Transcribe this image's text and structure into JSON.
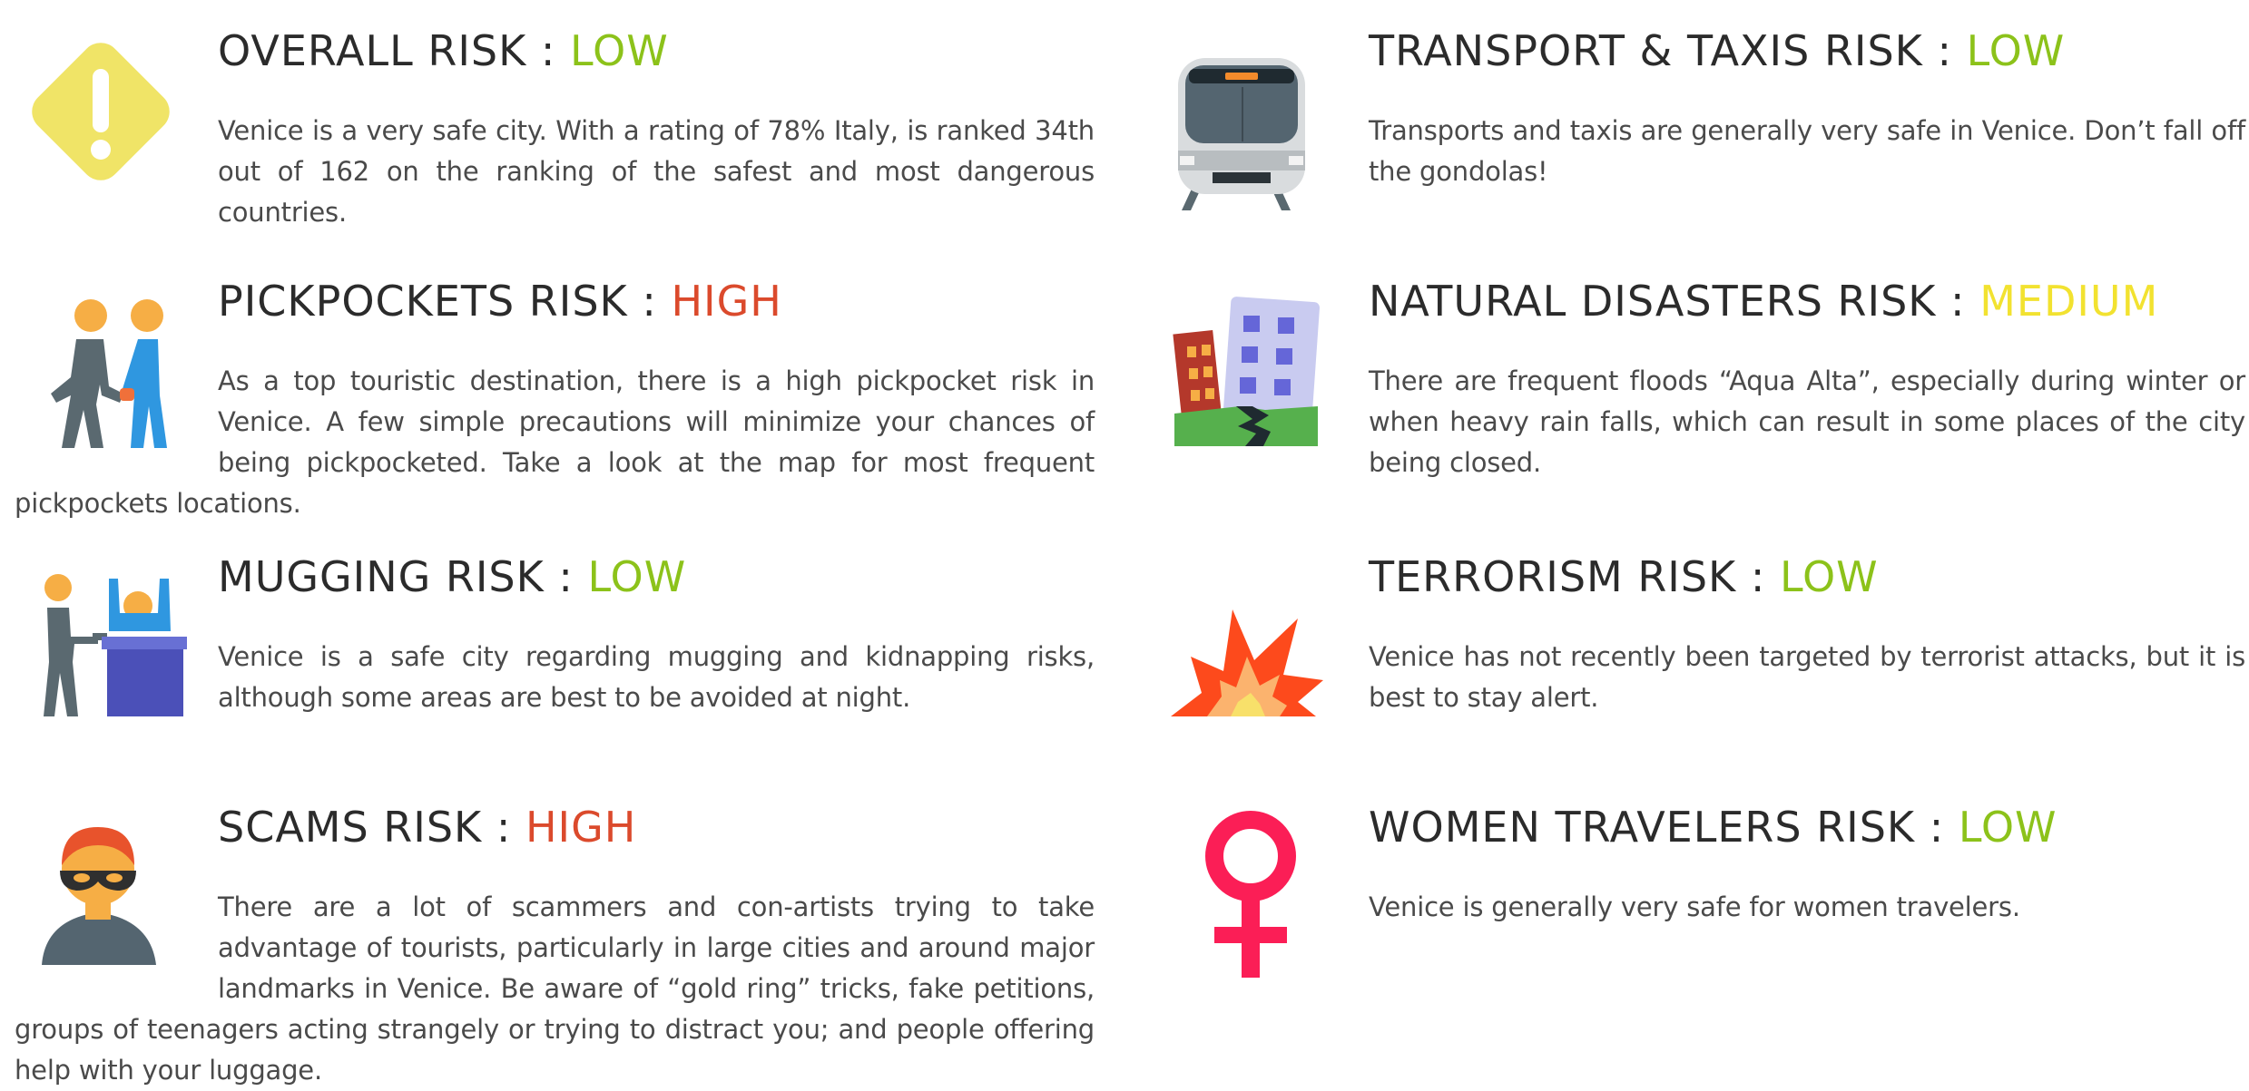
{
  "risks": [
    {
      "label": "OVERALL RISK",
      "separator": " : ",
      "level": "LOW",
      "description": "Venice is a very safe city. With a rating of 78% Italy,  is ranked 34th out of 162 on the ranking of the safest and most dangerous countries.",
      "icon": "warning-diamond-icon"
    },
    {
      "label": "PICKPOCKETS RISK",
      "separator": " : ",
      "level": "HIGH",
      "description": "As a top touristic destination, there is a high pickpocket risk in Venice. A few simple precautions will minimize your chances of being pickpocketed. Take a look at the map for most frequent pickpockets locations.",
      "icon": "pickpocket-icon"
    },
    {
      "label": "MUGGING RISK",
      "separator": " : ",
      "level": "LOW",
      "description": "Venice is a safe city regarding mugging and kidnapping risks, although some areas are best to be avoided at night.",
      "icon": "robbery-icon"
    },
    {
      "label": "SCAMS RISK",
      "separator": " : ",
      "level": "HIGH",
      "description": "There are a lot of scammers and con-artists trying to take advantage of tourists, particularly in large cities and around major landmarks in Venice. Be aware of “gold ring” tricks, fake petitions, groups of teenagers acting strangely or trying to distract you; and people offering help with your luggage.",
      "icon": "thief-mask-icon"
    },
    {
      "label": "TRANSPORT & TAXIS RISK",
      "separator": " : ",
      "level": "LOW",
      "description": "Transports and taxis are generally very safe in Venice. Don’t fall off the gondolas!",
      "icon": "train-icon"
    },
    {
      "label": "NATURAL DISASTERS RISK",
      "separator": " : ",
      "level": "MEDIUM",
      "description": "There are frequent floods “Aqua Alta”, especially during winter or when heavy rain falls, which can result in some places of the city being closed.",
      "icon": "earthquake-icon"
    },
    {
      "label": "TERRORISM RISK",
      "separator": " : ",
      "level": "LOW",
      "description": "Venice has not recently been targeted by terrorist attacks, but it is best to stay alert.",
      "icon": "explosion-icon"
    },
    {
      "label": "WOMEN TRAVELERS RISK",
      "separator": " : ",
      "level": "LOW",
      "description": "Venice is generally very safe for women travelers.",
      "icon": "female-symbol-icon"
    }
  ],
  "colors": {
    "low": "#8cc21a",
    "high": "#db4a2c",
    "medium": "#f2e230",
    "title": "#2b2b2b",
    "text": "#4a4a4a"
  }
}
